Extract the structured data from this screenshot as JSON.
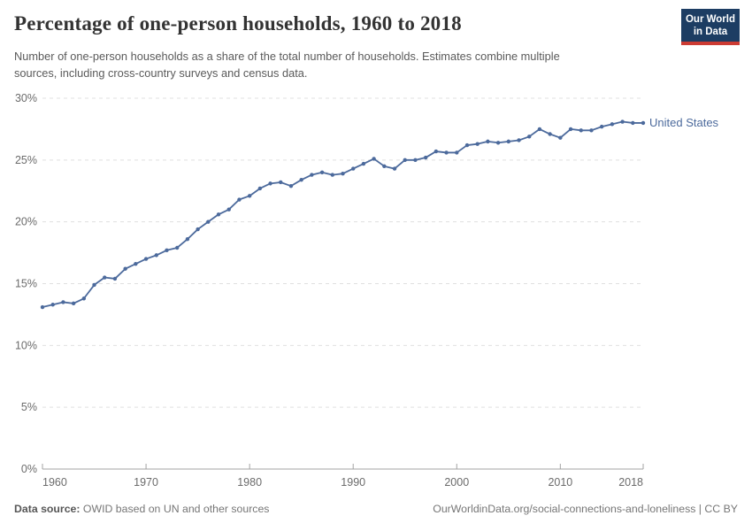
{
  "header": {
    "title": "Percentage of one-person households, 1960 to 2018",
    "subtitle_line1": "Number of one-person households as a share of the total number of households. Estimates combine multiple",
    "subtitle_line2": "sources, including cross-country surveys and census data.",
    "logo": {
      "line1": "Our World",
      "line2": "in Data"
    }
  },
  "colors": {
    "series": "#4c6a9c",
    "logo_bg": "#1d3d63",
    "logo_accent": "#cc3b33",
    "gridline": "#e0e0e0",
    "axis": "#a3a3a3",
    "tick_label": "#6b6b6b"
  },
  "chart_data": {
    "type": "line",
    "title": "Percentage of one-person households, 1960 to 2018",
    "xlabel": "",
    "ylabel": "",
    "ylim": [
      0,
      30
    ],
    "yticks": [
      0,
      5,
      10,
      15,
      20,
      25,
      30
    ],
    "ytick_suffix": "%",
    "xticks": [
      1960,
      1970,
      1980,
      1990,
      2000,
      2010,
      2018
    ],
    "grid": true,
    "legend_position": "end-of-line",
    "series": [
      {
        "name": "United States",
        "color": "#4c6a9c",
        "x": [
          1960,
          1961,
          1962,
          1963,
          1964,
          1965,
          1966,
          1967,
          1968,
          1969,
          1970,
          1971,
          1972,
          1973,
          1974,
          1975,
          1976,
          1977,
          1978,
          1979,
          1980,
          1981,
          1982,
          1983,
          1984,
          1985,
          1986,
          1987,
          1988,
          1989,
          1990,
          1991,
          1992,
          1993,
          1994,
          1995,
          1996,
          1997,
          1998,
          1999,
          2000,
          2001,
          2002,
          2003,
          2004,
          2005,
          2006,
          2007,
          2008,
          2009,
          2010,
          2011,
          2012,
          2013,
          2014,
          2015,
          2016,
          2017,
          2018
        ],
        "values": [
          13.1,
          13.3,
          13.5,
          13.4,
          13.8,
          14.9,
          15.5,
          15.4,
          16.2,
          16.6,
          17.0,
          17.3,
          17.7,
          17.9,
          18.6,
          19.4,
          20.0,
          20.6,
          21.0,
          21.8,
          22.1,
          22.7,
          23.1,
          23.2,
          22.9,
          23.4,
          23.8,
          24.0,
          23.8,
          23.9,
          24.3,
          24.7,
          25.1,
          24.5,
          24.3,
          25.0,
          25.0,
          25.2,
          25.7,
          25.6,
          25.6,
          26.2,
          26.3,
          26.5,
          26.4,
          26.5,
          26.6,
          26.9,
          27.5,
          27.1,
          26.8,
          27.5,
          27.4,
          27.4,
          27.7,
          27.9,
          28.1,
          28.0,
          28.0
        ]
      }
    ]
  },
  "footer": {
    "source_label": "Data source:",
    "source_text": " OWID based on UN and other sources",
    "link": "OurWorldinData.org/social-connections-and-loneliness",
    "divider": " | ",
    "license": "CC BY"
  }
}
